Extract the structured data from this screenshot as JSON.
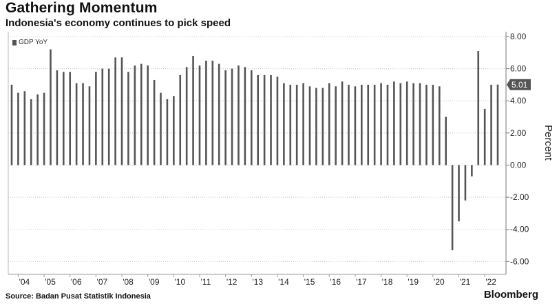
{
  "header": {
    "title": "Gathering Momentum",
    "subtitle": "Indonesia's economy continues to pick speed"
  },
  "footer": {
    "source": "Source: Badan Pusat Statistik Indonesia",
    "brand": "Bloomberg"
  },
  "chart_data": {
    "type": "bar",
    "series": [
      {
        "name": "GDP YoY",
        "color": "#555555",
        "values": [
          5.0,
          4.5,
          4.6,
          4.1,
          4.4,
          4.5,
          7.2,
          5.9,
          5.8,
          5.8,
          5.1,
          5.1,
          4.9,
          5.8,
          6.0,
          6.0,
          6.7,
          6.7,
          5.8,
          6.2,
          6.3,
          6.2,
          5.3,
          4.5,
          4.1,
          4.3,
          5.6,
          6.1,
          6.8,
          6.2,
          6.5,
          6.5,
          6.3,
          5.9,
          6.0,
          6.2,
          6.1,
          5.9,
          5.6,
          5.6,
          5.6,
          5.5,
          5.1,
          5.0,
          5.0,
          5.1,
          4.9,
          4.8,
          4.8,
          5.1,
          4.9,
          5.2,
          5.0,
          4.9,
          5.0,
          5.0,
          5.0,
          5.1,
          5.0,
          5.2,
          5.1,
          5.2,
          5.1,
          5.1,
          5.0,
          5.0,
          4.9,
          3.0,
          -5.3,
          -3.5,
          -2.2,
          -0.7,
          7.1,
          3.5,
          5.0,
          5.01
        ]
      }
    ],
    "last_value_label": "5.01",
    "ylabel": "Percent",
    "ylim": [
      -6.8,
      8.3
    ],
    "yticks": [
      "8.00",
      "6.00",
      "4.00",
      "2.00",
      "0.00",
      "-2.00",
      "-4.00",
      "-6.00"
    ],
    "ytick_values": [
      8,
      6,
      4,
      2,
      0,
      -2,
      -4,
      -6
    ],
    "xtick_labels": [
      "'04",
      "'05",
      "'06",
      "'07",
      "'08",
      "'09",
      "'10",
      "'11",
      "'12",
      "'13",
      "'14",
      "'15",
      "'16",
      "'17",
      "'18",
      "'19",
      "'20",
      "'21",
      "'22"
    ],
    "grid": "horizontal dotted",
    "legend": "top-left",
    "axis_position": "right"
  }
}
